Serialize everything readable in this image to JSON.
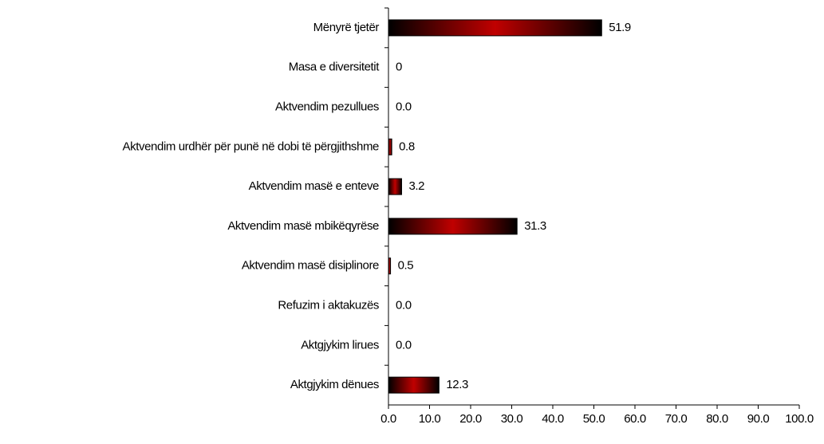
{
  "chart_data": {
    "type": "barh",
    "categories": [
      "Mënyrë tjetër",
      "Masa e diversitetit",
      "Aktvendim pezullues",
      "Aktvendim urdhër për punë në dobi të përgjithshme",
      "Aktvendim masë e enteve",
      "Aktvendim masë mbikëqyrëse",
      "Aktvendim masë disiplinore",
      "Refuzim i aktakuzës",
      "Aktgjykim lirues",
      "Aktgjykim dënues"
    ],
    "values": [
      51.9,
      0,
      0,
      0.8,
      3.2,
      31.3,
      0.5,
      0,
      0,
      12.3
    ],
    "value_labels": [
      "51.9",
      "0",
      "0.0",
      "0.8",
      "3.2",
      "31.3",
      "0.5",
      "0.0",
      "0.0",
      "12.3"
    ],
    "color": "#c00000",
    "xlim": [
      0,
      100
    ],
    "xticks": [
      {
        "value": 0,
        "label": "0.0"
      },
      {
        "value": 10,
        "label": "10.0"
      },
      {
        "value": 20,
        "label": "20.0"
      },
      {
        "value": 30,
        "label": "30.0"
      },
      {
        "value": 40,
        "label": "40.0"
      },
      {
        "value": 50,
        "label": "50.0"
      },
      {
        "value": 60,
        "label": "60.0"
      },
      {
        "value": 70,
        "label": "70.0"
      },
      {
        "value": 80,
        "label": "80.0"
      },
      {
        "value": 90,
        "label": "90.0"
      },
      {
        "value": 100,
        "label": "100.0"
      }
    ]
  }
}
